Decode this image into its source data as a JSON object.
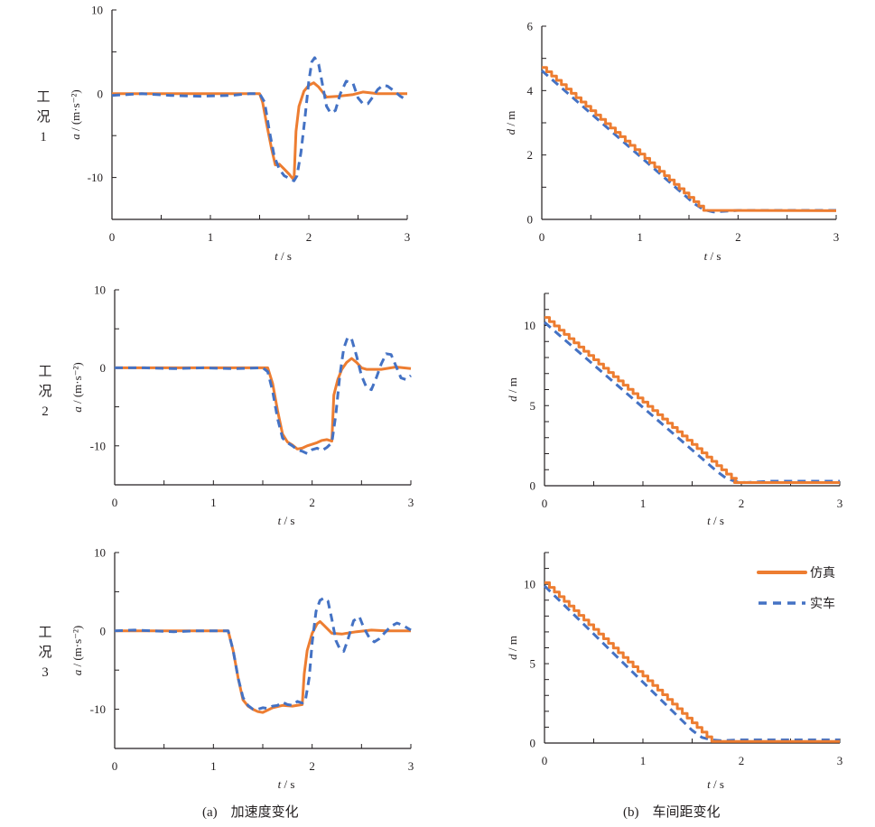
{
  "colors": {
    "simulation": "#ED7D31",
    "real_vehicle": "#4472C4",
    "axis": "#231f20"
  },
  "legend": [
    {
      "label": "仿真",
      "style": "solid",
      "color": "#ED7D31"
    },
    {
      "label": "实车",
      "style": "dashed",
      "color": "#4472C4"
    }
  ],
  "captions": {
    "a": "(a)    加速度变化",
    "b": "(b)    车间距变化"
  },
  "case_labels": [
    {
      "line1": "工",
      "line2": "况",
      "line3": "1"
    },
    {
      "line1": "工",
      "line2": "况",
      "line3": "2"
    },
    {
      "line1": "工",
      "line2": "况",
      "line3": "3"
    }
  ],
  "chart_data": [
    {
      "id": "a1",
      "type": "line",
      "title": "工况1 加速度",
      "xlabel": "t / s",
      "ylabel": "a / (m·s⁻²)",
      "xlim": [
        0,
        3
      ],
      "ylim": [
        -15,
        10
      ],
      "xticks": [
        0,
        1,
        2,
        3
      ],
      "xminor": 0.5,
      "yticks": [
        10,
        0,
        -10
      ],
      "yticks_labeled": [
        "10",
        "0",
        "-10"
      ],
      "yminor": 5,
      "grid": false,
      "series": [
        {
          "name": "仿真",
          "style": "solid",
          "x": [
            0,
            1.5,
            1.53,
            1.57,
            1.62,
            1.66,
            1.7,
            1.75,
            1.8,
            1.85,
            1.87,
            1.9,
            1.95,
            2.0,
            2.05,
            2.1,
            2.18,
            2.3,
            2.45,
            2.55,
            2.7,
            2.85,
            3.0
          ],
          "y": [
            0,
            0,
            -1,
            -3.5,
            -6.5,
            -8.5,
            -8.4,
            -9.0,
            -9.6,
            -10.3,
            -4.5,
            -1.5,
            0.3,
            1.0,
            1.3,
            0.8,
            -0.4,
            -0.3,
            -0.1,
            0.2,
            0,
            0,
            0
          ]
        },
        {
          "name": "实车",
          "style": "dashed",
          "x": [
            0,
            0.3,
            0.6,
            0.9,
            1.2,
            1.4,
            1.5,
            1.55,
            1.6,
            1.65,
            1.7,
            1.75,
            1.8,
            1.85,
            1.88,
            1.92,
            1.96,
            2.0,
            2.03,
            2.06,
            2.1,
            2.14,
            2.18,
            2.22,
            2.27,
            2.32,
            2.38,
            2.45,
            2.5,
            2.55,
            2.6,
            2.65,
            2.7,
            2.75,
            2.8,
            2.87,
            2.93,
            3.0
          ],
          "y": [
            -0.2,
            0,
            -0.2,
            -0.3,
            -0.2,
            0,
            0,
            -1.0,
            -4.5,
            -7.5,
            -9.0,
            -9.8,
            -10.1,
            -10.4,
            -9.8,
            -7.0,
            -3.0,
            1.5,
            3.8,
            4.3,
            3.5,
            1.0,
            -1.5,
            -2.3,
            -2.0,
            0.0,
            1.5,
            1.2,
            -0.5,
            -1.2,
            -1.2,
            -0.4,
            0.5,
            1.0,
            0.9,
            0.3,
            -0.3,
            -0.8
          ]
        }
      ]
    },
    {
      "id": "b1",
      "type": "line",
      "title": "工况1 车间距",
      "xlabel": "t / s",
      "ylabel": "d / m",
      "xlim": [
        0,
        3
      ],
      "ylim": [
        0,
        6
      ],
      "xticks": [
        0,
        1,
        2,
        3
      ],
      "xminor": 0.5,
      "yticks": [
        6,
        4,
        2,
        0
      ],
      "yticks_labeled": [
        "6",
        "4",
        "2",
        "0"
      ],
      "yminor": 1,
      "grid": false,
      "series": [
        {
          "name": "仿真",
          "style": "stepped",
          "x": [
            0,
            1.65,
            3.0
          ],
          "y": [
            4.72,
            0.28,
            0.27
          ],
          "step": 0.05
        },
        {
          "name": "实车",
          "style": "dashed",
          "x": [
            0,
            1.55,
            1.65,
            1.75,
            1.9,
            2.0,
            3.0
          ],
          "y": [
            4.62,
            0.5,
            0.3,
            0.23,
            0.26,
            0.28,
            0.28
          ]
        }
      ]
    },
    {
      "id": "a2",
      "type": "line",
      "title": "工况2 加速度",
      "xlabel": "t / s",
      "ylabel": "a / (m·s⁻²)",
      "xlim": [
        0,
        3
      ],
      "ylim": [
        -15,
        10
      ],
      "xticks": [
        0,
        1,
        2,
        3
      ],
      "xminor": 0.5,
      "yticks": [
        10,
        0,
        -10
      ],
      "yticks_labeled": [
        "10",
        "0",
        "-10"
      ],
      "yminor": 5,
      "grid": false,
      "series": [
        {
          "name": "仿真",
          "style": "solid",
          "x": [
            0,
            1.55,
            1.6,
            1.65,
            1.7,
            1.75,
            1.8,
            1.85,
            1.9,
            1.95,
            2.0,
            2.05,
            2.1,
            2.15,
            2.2,
            2.22,
            2.26,
            2.3,
            2.35,
            2.4,
            2.45,
            2.5,
            2.55,
            2.7,
            2.85,
            3.0
          ],
          "y": [
            0,
            0,
            -2.0,
            -5.5,
            -8.5,
            -9.5,
            -9.9,
            -10.4,
            -10.3,
            -10.0,
            -9.8,
            -9.6,
            -9.3,
            -9.2,
            -9.4,
            -3.5,
            -1.5,
            -0.2,
            0.7,
            1.2,
            0.7,
            0,
            -0.2,
            -0.2,
            0.1,
            -0.1
          ]
        },
        {
          "name": "实车",
          "style": "dashed",
          "x": [
            0,
            0.3,
            0.6,
            0.9,
            1.2,
            1.5,
            1.55,
            1.6,
            1.65,
            1.7,
            1.75,
            1.8,
            1.85,
            1.9,
            1.95,
            2.0,
            2.05,
            2.1,
            2.15,
            2.2,
            2.24,
            2.28,
            2.32,
            2.36,
            2.4,
            2.45,
            2.5,
            2.55,
            2.6,
            2.65,
            2.7,
            2.75,
            2.8,
            2.85,
            2.9,
            2.95,
            3.0
          ],
          "y": [
            0,
            0,
            -0.1,
            0,
            -0.1,
            0,
            -0.5,
            -3.0,
            -6.5,
            -9.0,
            -9.6,
            -10.0,
            -10.5,
            -10.7,
            -11.0,
            -10.5,
            -10.3,
            -10.6,
            -10.2,
            -9.6,
            -6.0,
            -1.0,
            2.5,
            3.9,
            3.7,
            1.5,
            -1.0,
            -2.5,
            -2.8,
            -1.3,
            0.5,
            1.8,
            1.7,
            0.2,
            -1.3,
            -1.5,
            -1.0
          ]
        }
      ]
    },
    {
      "id": "b2",
      "type": "line",
      "title": "工况2 车间距",
      "xlabel": "t / s",
      "ylabel": "d / m",
      "xlim": [
        0,
        3
      ],
      "ylim": [
        0,
        12
      ],
      "xticks": [
        0,
        1,
        2,
        3
      ],
      "xminor": 0.5,
      "yticks": [
        10,
        5,
        0
      ],
      "yticks_labeled": [
        "10",
        "5",
        "0"
      ],
      "yminor": 1,
      "grid": false,
      "series": [
        {
          "name": "仿真",
          "style": "stepped",
          "x": [
            0,
            1.93,
            3.0
          ],
          "y": [
            10.5,
            0.2,
            0.2
          ],
          "step": 0.05
        },
        {
          "name": "实车",
          "style": "dashed",
          "x": [
            0,
            1.75,
            1.85,
            1.95,
            2.05,
            2.3,
            3.0
          ],
          "y": [
            10.2,
            0.9,
            0.45,
            0.25,
            0.2,
            0.28,
            0.28
          ]
        }
      ]
    },
    {
      "id": "a3",
      "type": "line",
      "title": "工况3 加速度",
      "xlabel": "t / s",
      "ylabel": "a / (m·s⁻²)",
      "xlim": [
        0,
        3
      ],
      "ylim": [
        -15,
        10
      ],
      "xticks": [
        0,
        1,
        2,
        3
      ],
      "xminor": 0.5,
      "yticks": [
        10,
        0,
        -10
      ],
      "yticks_labeled": [
        "10",
        "0",
        "-10"
      ],
      "yminor": 5,
      "grid": false,
      "series": [
        {
          "name": "仿真",
          "style": "solid",
          "x": [
            0,
            1.15,
            1.2,
            1.25,
            1.3,
            1.35,
            1.4,
            1.45,
            1.5,
            1.55,
            1.6,
            1.7,
            1.8,
            1.9,
            1.92,
            1.95,
            2.0,
            2.05,
            2.08,
            2.12,
            2.2,
            2.3,
            2.45,
            2.6,
            2.75,
            3.0
          ],
          "y": [
            0,
            0,
            -2.5,
            -6.0,
            -8.8,
            -9.6,
            -10.0,
            -10.3,
            -10.4,
            -10.1,
            -9.8,
            -9.5,
            -9.6,
            -9.4,
            -5.5,
            -2.5,
            -0.3,
            0.9,
            1.2,
            0.7,
            -0.3,
            -0.4,
            -0.1,
            0.1,
            0,
            0
          ]
        },
        {
          "name": "实车",
          "style": "dashed",
          "x": [
            0,
            0.2,
            0.4,
            0.6,
            0.8,
            1.0,
            1.15,
            1.2,
            1.25,
            1.3,
            1.35,
            1.4,
            1.45,
            1.5,
            1.55,
            1.6,
            1.65,
            1.7,
            1.75,
            1.8,
            1.85,
            1.9,
            1.93,
            1.97,
            2.0,
            2.04,
            2.08,
            2.12,
            2.16,
            2.2,
            2.24,
            2.28,
            2.32,
            2.36,
            2.42,
            2.48,
            2.52,
            2.58,
            2.63,
            2.68,
            2.73,
            2.8,
            2.86,
            2.92,
            3.0
          ],
          "y": [
            0,
            0.1,
            0,
            -0.1,
            0,
            0,
            0,
            -2.5,
            -6.0,
            -8.5,
            -9.5,
            -10.0,
            -10.0,
            -9.8,
            -9.9,
            -9.6,
            -9.5,
            -9.1,
            -9.4,
            -9.5,
            -9.0,
            -9.2,
            -9.0,
            -6.0,
            -1.5,
            2.5,
            3.9,
            4.2,
            3.8,
            1.5,
            -1.2,
            -2.3,
            -2.6,
            -1.2,
            1.3,
            1.8,
            0.5,
            -0.9,
            -1.4,
            -1.0,
            -0.3,
            0.6,
            1.0,
            0.7,
            0.1
          ]
        }
      ]
    },
    {
      "id": "b3",
      "type": "line",
      "title": "工况3 车间距",
      "xlabel": "t / s",
      "ylabel": "d / m",
      "xlim": [
        0,
        3
      ],
      "ylim": [
        0,
        12
      ],
      "xticks": [
        0,
        1,
        2,
        3
      ],
      "xminor": 0.5,
      "yticks": [
        10,
        5,
        0
      ],
      "yticks_labeled": [
        "10",
        "5",
        "0"
      ],
      "yminor": 1,
      "grid": false,
      "legend_position": "top-right",
      "series": [
        {
          "name": "仿真",
          "style": "stepped",
          "x": [
            0,
            1.7,
            3.0
          ],
          "y": [
            10.1,
            0.1,
            0.1
          ],
          "step": 0.05
        },
        {
          "name": "实车",
          "style": "dashed",
          "x": [
            0,
            1.5,
            1.6,
            1.7,
            1.8,
            2.0,
            3.0
          ],
          "y": [
            9.9,
            0.8,
            0.35,
            0.2,
            0.15,
            0.2,
            0.2
          ]
        }
      ]
    }
  ]
}
